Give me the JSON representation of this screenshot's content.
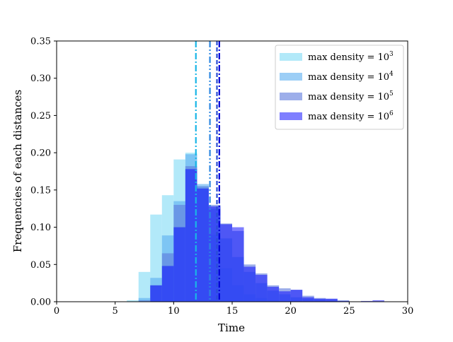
{
  "chart_data": {
    "type": "bar",
    "subtype": "overlapping histogram",
    "title": "",
    "xlabel": "Time",
    "ylabel": "Frequencies of each distances",
    "xlim": [
      0,
      30
    ],
    "ylim": [
      0,
      0.35
    ],
    "xticks": [
      "0",
      "5",
      "10",
      "15",
      "20",
      "25",
      "30"
    ],
    "yticks": [
      "0.00",
      "0.05",
      "0.10",
      "0.15",
      "0.20",
      "0.25",
      "0.30",
      "0.35"
    ],
    "grid": false,
    "legend_position": "top-right",
    "bin_width": 1,
    "series": [
      {
        "name": "max density = 10^3",
        "label_base": "max density = 10",
        "label_exp": "3",
        "color": "#7fdbf5",
        "alpha": 0.6,
        "line_style": "dash-dot",
        "mean_line_color": "#19b6e6",
        "mean": 11.9,
        "bins": [
          [
            6.5,
            0.002
          ],
          [
            7.5,
            0.04
          ],
          [
            8.5,
            0.117
          ],
          [
            9.5,
            0.143
          ],
          [
            10.5,
            0.191
          ],
          [
            11.5,
            0.2
          ],
          [
            12.5,
            0.155
          ],
          [
            13.5,
            0.09
          ],
          [
            14.5,
            0.045
          ],
          [
            15.5,
            0.022
          ],
          [
            16.5,
            0.01
          ],
          [
            17.5,
            0.005
          ],
          [
            18.5,
            0.002
          ],
          [
            19.5,
            0.001
          ]
        ]
      },
      {
        "name": "max density = 10^4",
        "label_base": "max density = 10",
        "label_exp": "4",
        "color": "#5aaef0",
        "alpha": 0.6,
        "line_style": "dash-dot-dot",
        "mean_line_color": "#2b86e0",
        "mean": 13.1,
        "bins": [
          [
            7.5,
            0.005
          ],
          [
            8.5,
            0.032
          ],
          [
            9.5,
            0.089
          ],
          [
            10.5,
            0.135
          ],
          [
            11.5,
            0.198
          ],
          [
            12.5,
            0.158
          ],
          [
            13.5,
            0.125
          ],
          [
            14.5,
            0.085
          ],
          [
            15.5,
            0.06
          ],
          [
            16.5,
            0.04
          ],
          [
            17.5,
            0.025
          ],
          [
            18.5,
            0.015
          ],
          [
            19.5,
            0.01
          ],
          [
            20.5,
            0.006
          ],
          [
            21.5,
            0.004
          ],
          [
            22.5,
            0.003
          ],
          [
            23.5,
            0.002
          ]
        ]
      },
      {
        "name": "max density = 10^5",
        "label_base": "max density = 10",
        "label_exp": "5",
        "color": "#5c78dc",
        "alpha": 0.6,
        "line_style": "dashed",
        "mean_line_color": "#2a4fd4",
        "mean": 13.7,
        "bins": [
          [
            7.5,
            0.002
          ],
          [
            8.5,
            0.022
          ],
          [
            9.5,
            0.065
          ],
          [
            10.5,
            0.13
          ],
          [
            11.5,
            0.182
          ],
          [
            12.5,
            0.155
          ],
          [
            13.5,
            0.13
          ],
          [
            14.5,
            0.105
          ],
          [
            15.5,
            0.095
          ],
          [
            16.5,
            0.05
          ],
          [
            17.5,
            0.038
          ],
          [
            18.5,
            0.022
          ],
          [
            19.5,
            0.018
          ],
          [
            20.5,
            0.016
          ],
          [
            21.5,
            0.008
          ],
          [
            22.5,
            0.005
          ],
          [
            23.5,
            0.004
          ],
          [
            24.5,
            0.002
          ]
        ]
      },
      {
        "name": "max density = 10^6",
        "label_base": "max density = 10",
        "label_exp": "6",
        "color": "#0000ff",
        "alpha": 0.5,
        "line_style": "dash-dot",
        "mean_line_color": "#0000d8",
        "mean": 13.9,
        "bins": [
          [
            8.5,
            0.022
          ],
          [
            9.5,
            0.048
          ],
          [
            10.5,
            0.1
          ],
          [
            11.5,
            0.178
          ],
          [
            12.5,
            0.152
          ],
          [
            13.5,
            0.128
          ],
          [
            14.5,
            0.104
          ],
          [
            15.5,
            0.1
          ],
          [
            16.5,
            0.047
          ],
          [
            17.5,
            0.036
          ],
          [
            18.5,
            0.02
          ],
          [
            19.5,
            0.014
          ],
          [
            20.5,
            0.016
          ],
          [
            21.5,
            0.006
          ],
          [
            22.5,
            0.004
          ],
          [
            23.5,
            0.004
          ],
          [
            24.5,
            0.001
          ],
          [
            26.5,
            0.001
          ],
          [
            27.5,
            0.002
          ]
        ]
      }
    ]
  }
}
